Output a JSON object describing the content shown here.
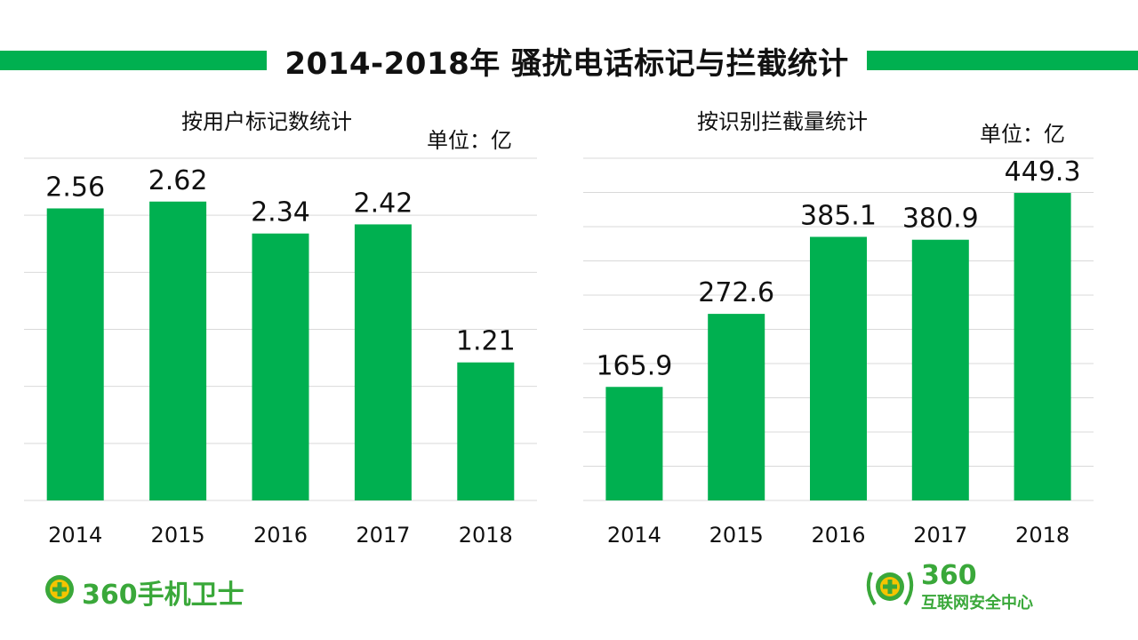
{
  "title": "2014-2018年 骚扰电话标记与拦截统计",
  "colors": {
    "accent": "#00b050",
    "grid": "#d9d9d9",
    "logo_green": "#3aa83a",
    "logo_yellow": "#f5c400"
  },
  "chart_data": [
    {
      "type": "bar",
      "title": "按用户标记数统计",
      "unit_label": "单位：亿",
      "categories": [
        "2014",
        "2015",
        "2016",
        "2017",
        "2018"
      ],
      "values": [
        2.56,
        2.62,
        2.34,
        2.42,
        1.21
      ],
      "value_labels": [
        "2.56",
        "2.62",
        "2.34",
        "2.42",
        "1.21"
      ],
      "ylim": [
        0,
        3
      ],
      "grid": true,
      "legend": "none"
    },
    {
      "type": "bar",
      "title": "按识别拦截量统计",
      "unit_label": "单位：亿",
      "categories": [
        "2014",
        "2015",
        "2016",
        "2017",
        "2018"
      ],
      "values": [
        165.9,
        272.6,
        385.1,
        380.9,
        449.3
      ],
      "value_labels": [
        "165.9",
        "272.6",
        "385.1",
        "380.9",
        "449.3"
      ],
      "ylim": [
        0,
        500
      ],
      "grid": true,
      "legend": "none"
    }
  ],
  "logos": {
    "left": {
      "icon": "plus-badge-icon",
      "text": "360手机卫士"
    },
    "right": {
      "icon": "laurel-plus-badge-icon",
      "number": "360",
      "text": "互联网安全中心"
    }
  }
}
